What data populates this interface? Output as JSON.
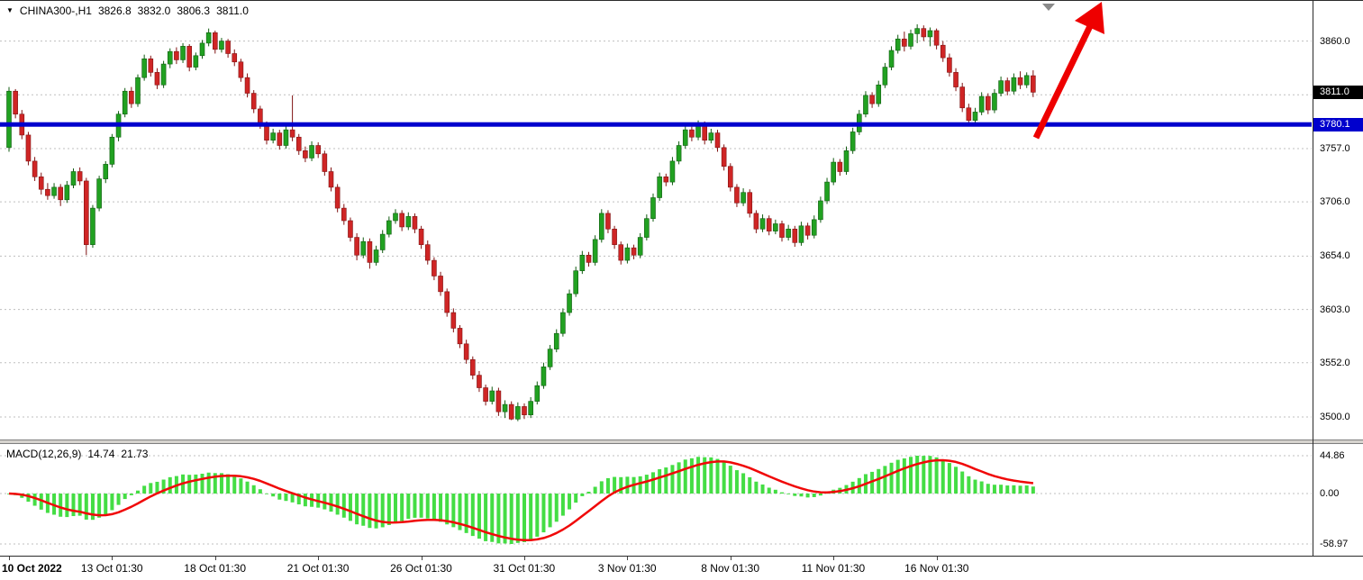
{
  "header": {
    "symbol": "CHINA300-,H1",
    "open": "3826.8",
    "high": "3832.0",
    "low": "3806.3",
    "close": "3811.0"
  },
  "price_axis": {
    "labels": [
      "3860.0",
      "3757.0",
      "3706.0",
      "3654.0",
      "3603.0",
      "3552.0",
      "3500.0"
    ],
    "bid_badge": "3811.0",
    "line_badge": "3780.1"
  },
  "macd_panel": {
    "title": "MACD(12,26,9)",
    "macd_value": "14.74",
    "signal_value": "21.73",
    "axis_labels": [
      "44.86",
      "0.00",
      "-58.97"
    ]
  },
  "colors": {
    "bull": "#21a121",
    "bull_dark": "#115c11",
    "bear": "#cf2525",
    "bear_dark": "#801313",
    "macd_bar": "#44dd44",
    "macd_signal": "#f00808",
    "hline": "#0000cd",
    "arrow": "#ee0000",
    "grid": "#bfbfbf",
    "badge_bid_bg": "#000000",
    "badge_line_bg": "#0000cd",
    "shift_marker": "#8a8a8a"
  },
  "chart_data": {
    "type": "candlestick",
    "symbol": "CHINA300-",
    "timeframe": "H1",
    "title": "CHINA300-,H1 3826.8 3832.0 3806.3 3811.0",
    "y_axis_gridlines": [
      3860.0,
      3808.5,
      3757.0,
      3706.0,
      3654.0,
      3603.0,
      3552.0,
      3500.0
    ],
    "support_line_price": 3780.1,
    "bid_price": 3811.0,
    "indicator": {
      "type": "MACD",
      "fast": 12,
      "slow": 26,
      "signal": 9,
      "current_macd": 14.74,
      "current_signal": 21.73,
      "axis_max": 44.86,
      "axis_min": -58.97
    },
    "time_labels": [
      {
        "label": "10 Oct 2022",
        "index": 0
      },
      {
        "label": "13 Oct 01:30",
        "index": 16
      },
      {
        "label": "18 Oct 01:30",
        "index": 32
      },
      {
        "label": "21 Oct 01:30",
        "index": 48
      },
      {
        "label": "26 Oct 01:30",
        "index": 64
      },
      {
        "label": "31 Oct 01:30",
        "index": 80
      },
      {
        "label": "3 Nov 01:30",
        "index": 96
      },
      {
        "label": "8 Nov 01:30",
        "index": 112
      },
      {
        "label": "11 Nov 01:30",
        "index": 128
      },
      {
        "label": "16 Nov 01:30",
        "index": 144
      }
    ],
    "candles": [
      [
        3758,
        3816,
        3754,
        3812
      ],
      [
        3812,
        3814,
        3786,
        3790
      ],
      [
        3790,
        3794,
        3766,
        3770
      ],
      [
        3770,
        3773,
        3741,
        3745
      ],
      [
        3745,
        3749,
        3726,
        3730
      ],
      [
        3730,
        3734,
        3713,
        3718
      ],
      [
        3718,
        3724,
        3708,
        3712
      ],
      [
        3712,
        3724,
        3709,
        3720
      ],
      [
        3720,
        3723,
        3702,
        3708
      ],
      [
        3708,
        3726,
        3705,
        3722
      ],
      [
        3722,
        3738,
        3719,
        3735
      ],
      [
        3735,
        3739,
        3722,
        3726
      ],
      [
        3726,
        3729,
        3655,
        3665
      ],
      [
        3665,
        3703,
        3662,
        3700
      ],
      [
        3700,
        3731,
        3697,
        3728
      ],
      [
        3728,
        3745,
        3724,
        3742
      ],
      [
        3742,
        3771,
        3739,
        3768
      ],
      [
        3768,
        3793,
        3764,
        3790
      ],
      [
        3790,
        3815,
        3787,
        3812
      ],
      [
        3812,
        3816,
        3796,
        3800
      ],
      [
        3800,
        3828,
        3797,
        3825
      ],
      [
        3825,
        3847,
        3822,
        3843
      ],
      [
        3843,
        3846,
        3826,
        3830
      ],
      [
        3830,
        3834,
        3814,
        3818
      ],
      [
        3818,
        3841,
        3815,
        3838
      ],
      [
        3838,
        3853,
        3834,
        3850
      ],
      [
        3850,
        3854,
        3838,
        3842
      ],
      [
        3842,
        3858,
        3839,
        3855
      ],
      [
        3855,
        3857,
        3831,
        3835
      ],
      [
        3835,
        3849,
        3832,
        3846
      ],
      [
        3846,
        3861,
        3843,
        3858
      ],
      [
        3858,
        3872,
        3855,
        3868
      ],
      [
        3868,
        3870,
        3848,
        3852
      ],
      [
        3852,
        3863,
        3849,
        3860
      ],
      [
        3860,
        3862,
        3844,
        3848
      ],
      [
        3848,
        3852,
        3836,
        3840
      ],
      [
        3840,
        3843,
        3821,
        3825
      ],
      [
        3825,
        3829,
        3806,
        3810
      ],
      [
        3810,
        3813,
        3791,
        3795
      ],
      [
        3795,
        3798,
        3776,
        3780
      ],
      [
        3780,
        3783,
        3761,
        3765
      ],
      [
        3765,
        3776,
        3762,
        3772
      ],
      [
        3772,
        3775,
        3756,
        3760
      ],
      [
        3760,
        3779,
        3757,
        3775
      ],
      [
        3775,
        3808,
        3764,
        3768
      ],
      [
        3768,
        3771,
        3751,
        3755
      ],
      [
        3755,
        3759,
        3744,
        3748
      ],
      [
        3748,
        3764,
        3745,
        3760
      ],
      [
        3760,
        3763,
        3748,
        3752
      ],
      [
        3752,
        3755,
        3731,
        3735
      ],
      [
        3735,
        3739,
        3716,
        3720
      ],
      [
        3720,
        3723,
        3696,
        3700
      ],
      [
        3700,
        3704,
        3684,
        3688
      ],
      [
        3688,
        3691,
        3668,
        3672
      ],
      [
        3672,
        3676,
        3650,
        3655
      ],
      [
        3655,
        3672,
        3652,
        3668
      ],
      [
        3668,
        3671,
        3642,
        3648
      ],
      [
        3648,
        3664,
        3645,
        3660
      ],
      [
        3660,
        3679,
        3657,
        3675
      ],
      [
        3675,
        3692,
        3672,
        3688
      ],
      [
        3688,
        3699,
        3685,
        3695
      ],
      [
        3695,
        3698,
        3678,
        3682
      ],
      [
        3682,
        3696,
        3679,
        3692
      ],
      [
        3692,
        3695,
        3676,
        3680
      ],
      [
        3680,
        3683,
        3661,
        3665
      ],
      [
        3665,
        3669,
        3646,
        3650
      ],
      [
        3650,
        3653,
        3631,
        3635
      ],
      [
        3635,
        3639,
        3616,
        3620
      ],
      [
        3620,
        3623,
        3596,
        3600
      ],
      [
        3600,
        3604,
        3581,
        3585
      ],
      [
        3585,
        3588,
        3566,
        3570
      ],
      [
        3570,
        3574,
        3551,
        3555
      ],
      [
        3555,
        3558,
        3536,
        3540
      ],
      [
        3540,
        3544,
        3524,
        3528
      ],
      [
        3528,
        3531,
        3511,
        3515
      ],
      [
        3515,
        3529,
        3512,
        3525
      ],
      [
        3525,
        3528,
        3501,
        3505
      ],
      [
        3505,
        3516,
        3499,
        3512
      ],
      [
        3512,
        3515,
        3497,
        3498
      ],
      [
        3498,
        3514,
        3496,
        3510
      ],
      [
        3510,
        3513,
        3498,
        3502
      ],
      [
        3502,
        3519,
        3499,
        3515
      ],
      [
        3515,
        3534,
        3512,
        3530
      ],
      [
        3530,
        3552,
        3527,
        3548
      ],
      [
        3548,
        3569,
        3545,
        3565
      ],
      [
        3565,
        3584,
        3562,
        3580
      ],
      [
        3580,
        3604,
        3577,
        3600
      ],
      [
        3600,
        3622,
        3597,
        3618
      ],
      [
        3618,
        3644,
        3615,
        3640
      ],
      [
        3640,
        3659,
        3637,
        3655
      ],
      [
        3655,
        3658,
        3644,
        3648
      ],
      [
        3648,
        3674,
        3645,
        3670
      ],
      [
        3670,
        3699,
        3667,
        3695
      ],
      [
        3695,
        3698,
        3676,
        3680
      ],
      [
        3680,
        3683,
        3661,
        3665
      ],
      [
        3665,
        3668,
        3646,
        3650
      ],
      [
        3650,
        3666,
        3647,
        3662
      ],
      [
        3662,
        3665,
        3651,
        3655
      ],
      [
        3655,
        3676,
        3652,
        3672
      ],
      [
        3672,
        3694,
        3669,
        3690
      ],
      [
        3690,
        3714,
        3687,
        3710
      ],
      [
        3710,
        3734,
        3707,
        3730
      ],
      [
        3730,
        3733,
        3721,
        3725
      ],
      [
        3725,
        3749,
        3722,
        3745
      ],
      [
        3745,
        3764,
        3742,
        3760
      ],
      [
        3760,
        3779,
        3757,
        3775
      ],
      [
        3775,
        3778,
        3764,
        3768
      ],
      [
        3768,
        3784,
        3765,
        3780
      ],
      [
        3780,
        3783,
        3761,
        3765
      ],
      [
        3765,
        3776,
        3762,
        3772
      ],
      [
        3772,
        3775,
        3754,
        3758
      ],
      [
        3758,
        3761,
        3736,
        3740
      ],
      [
        3740,
        3743,
        3716,
        3720
      ],
      [
        3720,
        3723,
        3701,
        3705
      ],
      [
        3705,
        3719,
        3702,
        3715
      ],
      [
        3715,
        3718,
        3691,
        3695
      ],
      [
        3695,
        3698,
        3676,
        3680
      ],
      [
        3680,
        3694,
        3677,
        3690
      ],
      [
        3690,
        3693,
        3674,
        3678
      ],
      [
        3678,
        3689,
        3675,
        3685
      ],
      [
        3685,
        3688,
        3668,
        3672
      ],
      [
        3672,
        3684,
        3669,
        3680
      ],
      [
        3680,
        3683,
        3663,
        3667
      ],
      [
        3667,
        3687,
        3664,
        3683
      ],
      [
        3683,
        3686,
        3670,
        3674
      ],
      [
        3674,
        3693,
        3671,
        3689
      ],
      [
        3689,
        3711,
        3686,
        3707
      ],
      [
        3707,
        3729,
        3704,
        3725
      ],
      [
        3725,
        3748,
        3722,
        3744
      ],
      [
        3744,
        3747,
        3731,
        3735
      ],
      [
        3735,
        3759,
        3732,
        3755
      ],
      [
        3755,
        3777,
        3752,
        3773
      ],
      [
        3773,
        3794,
        3770,
        3790
      ],
      [
        3790,
        3812,
        3787,
        3808
      ],
      [
        3808,
        3811,
        3796,
        3800
      ],
      [
        3800,
        3822,
        3797,
        3818
      ],
      [
        3818,
        3839,
        3815,
        3835
      ],
      [
        3835,
        3855,
        3832,
        3851
      ],
      [
        3851,
        3866,
        3848,
        3862
      ],
      [
        3862,
        3869,
        3850,
        3855
      ],
      [
        3855,
        3871,
        3852,
        3867
      ],
      [
        3867,
        3876,
        3858,
        3872
      ],
      [
        3872,
        3875,
        3860,
        3864
      ],
      [
        3864,
        3873,
        3855,
        3870
      ],
      [
        3870,
        3872,
        3852,
        3856
      ],
      [
        3856,
        3860,
        3840,
        3844
      ],
      [
        3844,
        3848,
        3826,
        3830
      ],
      [
        3830,
        3834,
        3812,
        3816
      ],
      [
        3816,
        3820,
        3792,
        3796
      ],
      [
        3796,
        3800,
        3780,
        3784
      ],
      [
        3784,
        3796,
        3781,
        3792
      ],
      [
        3792,
        3811,
        3789,
        3807
      ],
      [
        3807,
        3810,
        3790,
        3794
      ],
      [
        3794,
        3814,
        3791,
        3810
      ],
      [
        3810,
        3826,
        3807,
        3822
      ],
      [
        3822,
        3825,
        3808,
        3812
      ],
      [
        3812,
        3829,
        3809,
        3825
      ],
      [
        3825,
        3831,
        3814,
        3818
      ],
      [
        3818,
        3830,
        3815,
        3827
      ],
      [
        3826.8,
        3832.0,
        3806.3,
        3811.0
      ]
    ]
  }
}
